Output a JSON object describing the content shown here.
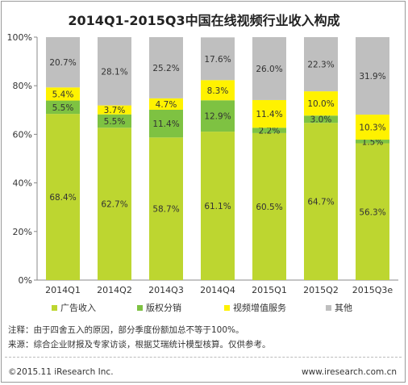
{
  "chart_data": {
    "type": "bar",
    "stacked": true,
    "title": "2014Q1-2015Q3中国在线视频行业收入构成",
    "categories": [
      "2014Q1",
      "2014Q2",
      "2014Q3",
      "2014Q4",
      "2015Q1",
      "2015Q2",
      "2015Q3e"
    ],
    "series": [
      {
        "name": "广告收入",
        "color": "#bdd630",
        "values": [
          68.4,
          62.7,
          58.7,
          61.1,
          60.5,
          64.7,
          56.3
        ]
      },
      {
        "name": "版权分销",
        "color": "#7ec242",
        "values": [
          5.5,
          5.5,
          11.4,
          12.9,
          2.2,
          3.0,
          1.5
        ]
      },
      {
        "name": "视频增值服务",
        "color": "#fff200",
        "values": [
          5.4,
          3.7,
          4.7,
          8.3,
          11.4,
          10.0,
          10.3
        ]
      },
      {
        "name": "其他",
        "color": "#bfbfbf",
        "values": [
          20.7,
          28.1,
          25.2,
          17.6,
          26.0,
          22.3,
          31.9
        ]
      }
    ],
    "ylim": [
      0,
      100
    ],
    "yticks": [
      "0%",
      "20%",
      "40%",
      "60%",
      "80%",
      "100%"
    ],
    "legend_position": "bottom",
    "grid": false
  },
  "notes": {
    "line1": "注释：由于四舍五入的原因，部分季度份额加总不等于100%。",
    "line2": "来源：综合企业财报及专家访谈，根据艾瑞统计模型核算。仅供参考。"
  },
  "footer": {
    "copyright": "©2015.11 iResearch Inc.",
    "website": "www.iresearch.com.cn"
  }
}
